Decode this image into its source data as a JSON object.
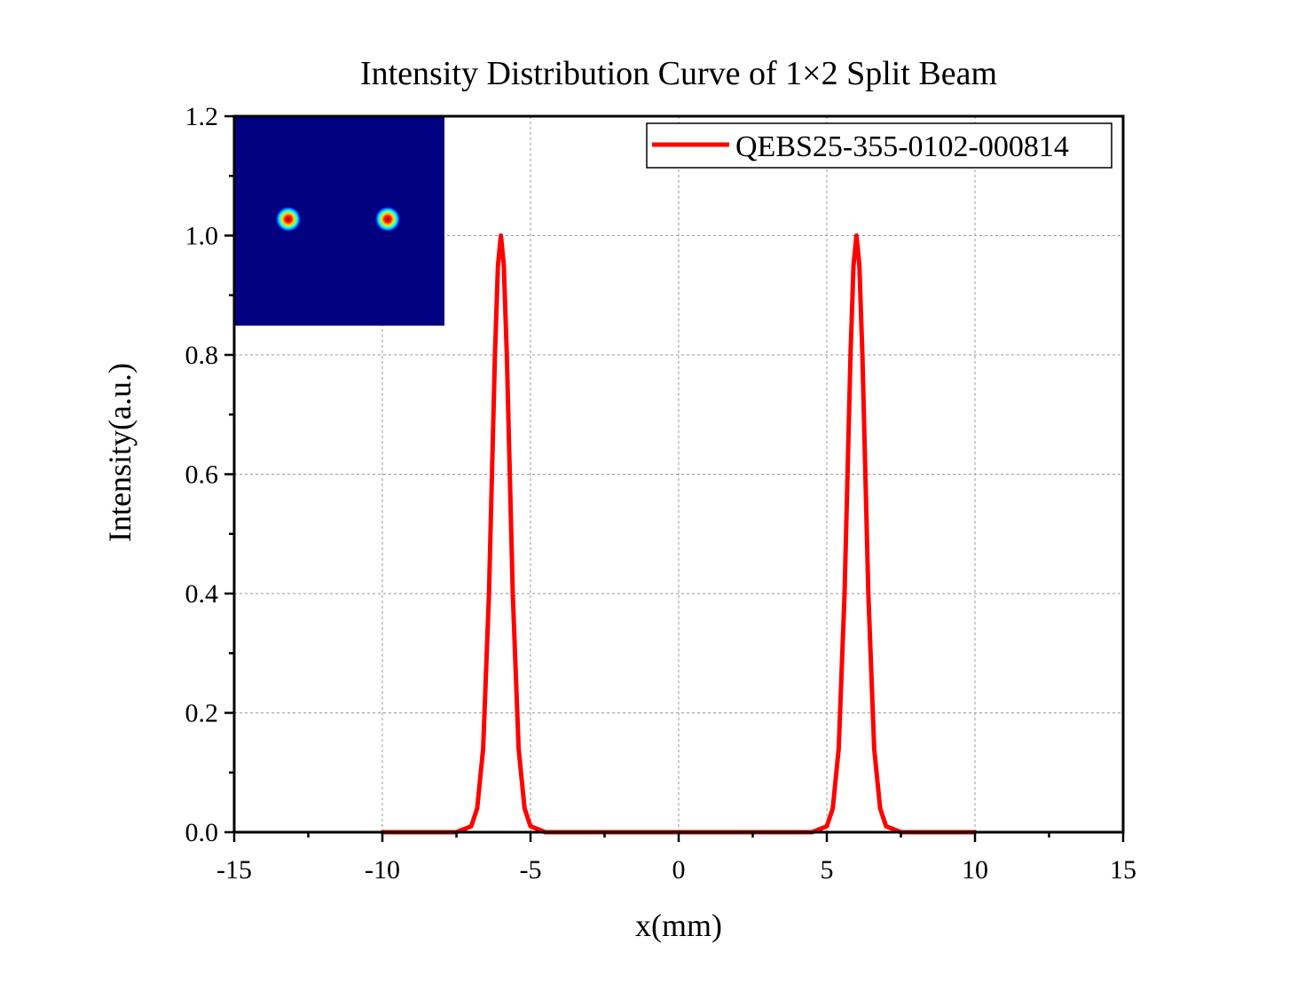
{
  "chart_data": {
    "type": "line",
    "title": "Intensity Distribution Curve of 1×2 Split Beam",
    "xlabel": "x(mm)",
    "ylabel": "Intensity(a.u.)",
    "xlim": [
      -15,
      15
    ],
    "ylim": [
      0,
      1.2
    ],
    "x_ticks": [
      -15,
      -10,
      -5,
      0,
      5,
      10,
      15
    ],
    "x_tick_labels": [
      "-15",
      "-10",
      "-5",
      "0",
      "5",
      "10",
      "15"
    ],
    "y_ticks": [
      0,
      0.2,
      0.4,
      0.6,
      0.8,
      1.0,
      1.2
    ],
    "y_tick_labels": [
      "0.0",
      "0.2",
      "0.4",
      "0.6",
      "0.8",
      "1.0",
      "1.2"
    ],
    "grid": true,
    "legend_position": "top-right",
    "series": [
      {
        "name": "QEBS25-355-0102-000814",
        "color": "#ff0000",
        "x": [
          -10,
          -8,
          -7.5,
          -7,
          -6.8,
          -6.6,
          -6.4,
          -6.2,
          -6.1,
          -6,
          -5.9,
          -5.8,
          -5.6,
          -5.4,
          -5.2,
          -5,
          -4.5,
          -4,
          -2,
          0,
          2,
          4,
          4.5,
          5,
          5.2,
          5.4,
          5.6,
          5.8,
          5.9,
          6,
          6.1,
          6.2,
          6.4,
          6.6,
          6.8,
          7,
          7.5,
          8,
          10
        ],
        "y": [
          0,
          0,
          0,
          0.01,
          0.04,
          0.14,
          0.4,
          0.8,
          0.95,
          1.0,
          0.95,
          0.8,
          0.4,
          0.14,
          0.04,
          0.01,
          0,
          0,
          0,
          0,
          0,
          0,
          0,
          0.01,
          0.04,
          0.14,
          0.4,
          0.8,
          0.95,
          1.0,
          0.95,
          0.8,
          0.4,
          0.14,
          0.04,
          0.01,
          0,
          0,
          0
        ]
      }
    ],
    "inset": {
      "description_type": "beam-profile-image",
      "background_color": "#000080",
      "spot_count": 2,
      "spot_colors": [
        "#cc0000",
        "#ffff00",
        "#00ffff",
        "#0000ff"
      ]
    }
  }
}
